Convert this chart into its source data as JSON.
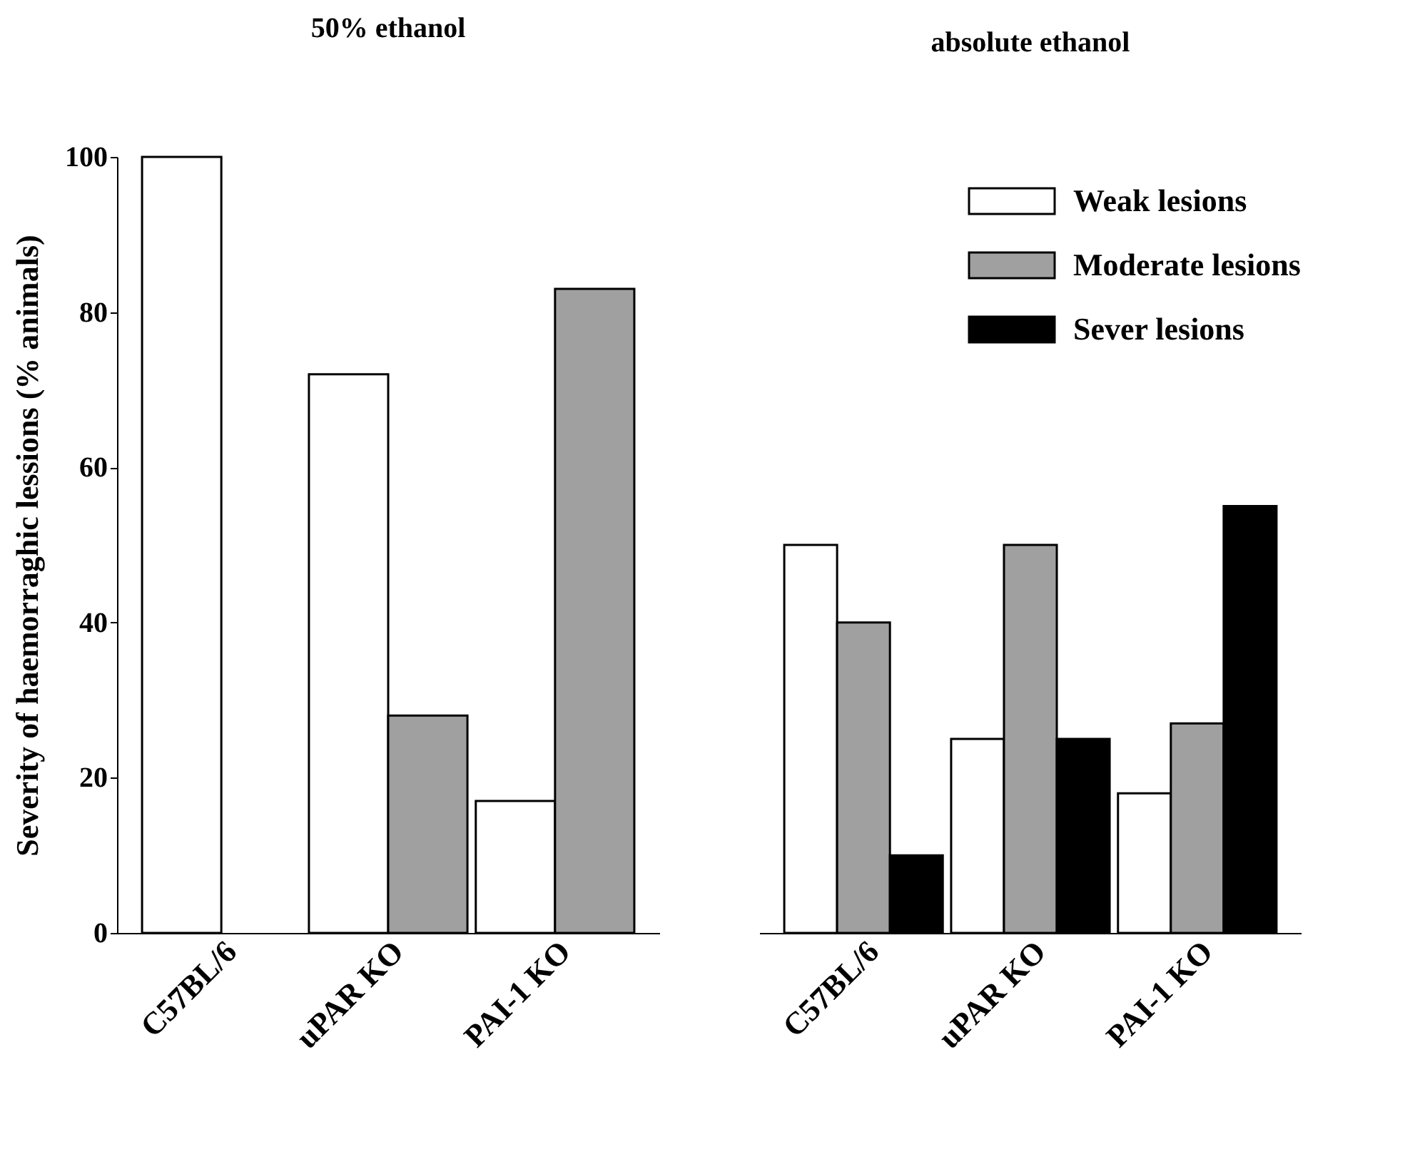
{
  "chart_data": [
    {
      "type": "bar",
      "title": "50% ethanol",
      "ylabel": "Severity of haemorraghic lessions (% animals)",
      "categories": [
        "C57BL/6",
        "uPAR KO",
        "PAI-1 KO"
      ],
      "ylim": [
        0,
        100
      ],
      "yticks": [
        0,
        20,
        40,
        60,
        80,
        100
      ],
      "grid": false,
      "series": [
        {
          "color": "#ffffff",
          "values": [
            100,
            72,
            17
          ]
        },
        {
          "color": "#a0a0a0",
          "values": [
            null,
            28,
            83
          ]
        }
      ]
    },
    {
      "type": "bar",
      "title": "absolute ethanol",
      "categories": [
        "C57BL/6",
        "uPAR KO",
        "PAI-1 KO"
      ],
      "ylim": [
        0,
        100
      ],
      "yticks": [
        0,
        20,
        40,
        60,
        80,
        100
      ],
      "grid": false,
      "legend": "top right",
      "tick_labels": "x",
      "series": [
        {
          "name": "Weak lesions",
          "color": "#ffffff",
          "values": [
            50,
            25,
            18
          ]
        },
        {
          "name": "Moderate lesions",
          "color": "#a0a0a0",
          "values": [
            40,
            50,
            27
          ]
        },
        {
          "name": "Sever lesions",
          "color": "#000000",
          "values": [
            10,
            25,
            55
          ]
        }
      ]
    }
  ]
}
